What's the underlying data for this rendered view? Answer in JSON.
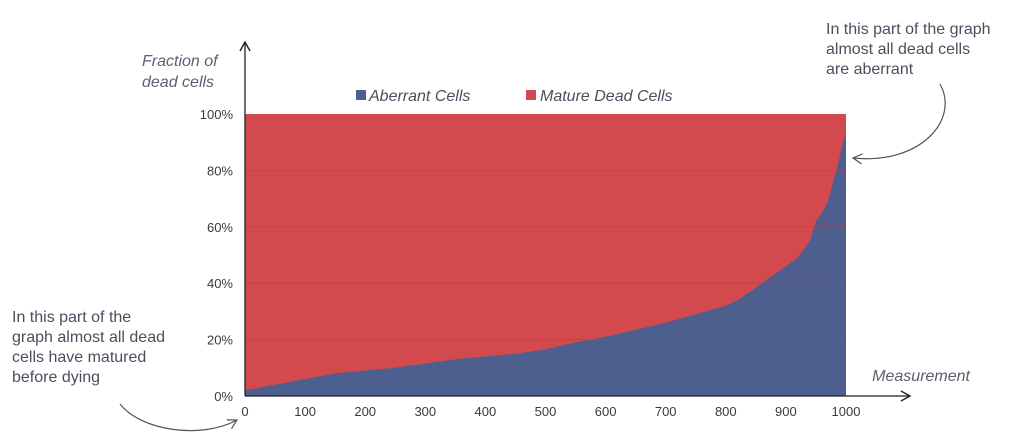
{
  "annotations": {
    "top_right": [
      "In this part of the graph",
      "almost all dead cells",
      "are aberrant"
    ],
    "bottom_left": [
      "In this part of the",
      "graph almost all dead",
      "cells have matured",
      "before dying"
    ]
  },
  "colors": {
    "aberrant": "#4d5f8f",
    "mature": "#d24a4d",
    "axis": "#222222",
    "grid": "#b8454a"
  },
  "chart_data": {
    "type": "area",
    "title": "",
    "xlabel": "Measurement",
    "ylabel": "Fraction of dead cells",
    "xlim": [
      0,
      1000
    ],
    "ylim": [
      0,
      100
    ],
    "x_ticks": [
      "0",
      "100",
      "200",
      "300",
      "400",
      "500",
      "600",
      "700",
      "800",
      "900",
      "1000"
    ],
    "y_ticks": [
      "0%",
      "20%",
      "40%",
      "60%",
      "80%",
      "100%"
    ],
    "stacked": true,
    "legend_position": "top",
    "series": [
      {
        "name": "Aberrant Cells",
        "x": [
          0,
          50,
          100,
          150,
          200,
          250,
          300,
          350,
          400,
          450,
          500,
          550,
          600,
          650,
          700,
          750,
          800,
          820,
          840,
          860,
          880,
          900,
          920,
          940,
          950,
          960,
          970,
          980,
          990,
          995,
          1000
        ],
        "values": [
          2,
          4,
          6,
          8,
          9,
          10,
          11.5,
          13,
          14,
          15,
          16.5,
          19,
          21,
          23.5,
          26,
          29,
          32,
          34,
          37,
          40,
          43,
          46,
          49,
          55,
          62,
          65,
          69,
          77,
          85,
          90,
          93
        ]
      },
      {
        "name": "Mature Dead Cells",
        "x": [
          0,
          50,
          100,
          150,
          200,
          250,
          300,
          350,
          400,
          450,
          500,
          550,
          600,
          650,
          700,
          750,
          800,
          820,
          840,
          860,
          880,
          900,
          920,
          940,
          950,
          960,
          970,
          980,
          990,
          995,
          1000
        ],
        "values": [
          98,
          96,
          94,
          92,
          91,
          90,
          88.5,
          87,
          86,
          85,
          83.5,
          81,
          79,
          76.5,
          74,
          71,
          68,
          66,
          63,
          60,
          57,
          54,
          51,
          45,
          38,
          35,
          31,
          23,
          15,
          10,
          7
        ]
      }
    ]
  }
}
